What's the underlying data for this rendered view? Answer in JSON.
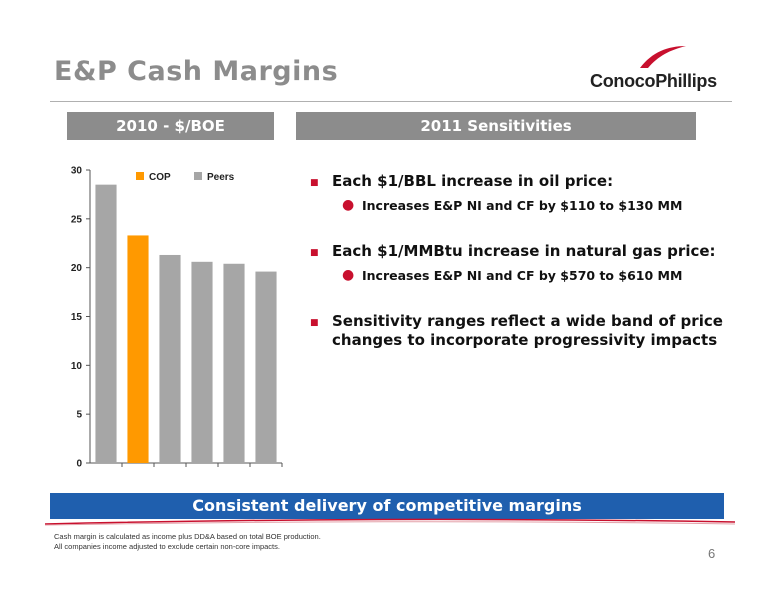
{
  "slide": {
    "title": "E&P Cash Margins",
    "logo_text": "ConocoPhillips",
    "left_header": "2010 - $/BOE",
    "right_header": "2011 Sensitivities",
    "bullets": [
      {
        "text": "Each $1/BBL increase in oil price:",
        "sub": "Increases E&P NI and CF by $110 to $130 MM"
      },
      {
        "text": "Each $1/MMBtu increase in natural gas price:",
        "sub": "Increases E&P NI and CF by $570 to $610 MM"
      },
      {
        "text": "Sensitivity ranges reflect a wide band of price changes to incorporate progressivity impacts",
        "sub": ""
      }
    ],
    "banner": "Consistent delivery of competitive margins",
    "footnote_1": "Cash margin is calculated as income plus DD&A based on total BOE production.",
    "footnote_2": "All companies income adjusted to exclude certain non-core impacts.",
    "page_number": "6"
  },
  "colors": {
    "cop": "#ff9900",
    "peers": "#a6a6a6",
    "accent_red": "#c8102e",
    "banner_blue": "#1f5fae"
  },
  "chart_data": {
    "type": "bar",
    "ylim": [
      0,
      30
    ],
    "yticks": [
      "0",
      "5",
      "10",
      "15",
      "20",
      "25",
      "30"
    ],
    "legend": [
      {
        "name": "COP",
        "color": "#ff9900"
      },
      {
        "name": "Peers",
        "color": "#a6a6a6"
      }
    ],
    "series": [
      {
        "name": "Peers",
        "value": 28.5
      },
      {
        "name": "COP",
        "value": 23.3
      },
      {
        "name": "Peers",
        "value": 21.3
      },
      {
        "name": "Peers",
        "value": 20.6
      },
      {
        "name": "Peers",
        "value": 20.4
      },
      {
        "name": "Peers",
        "value": 19.6
      }
    ]
  }
}
